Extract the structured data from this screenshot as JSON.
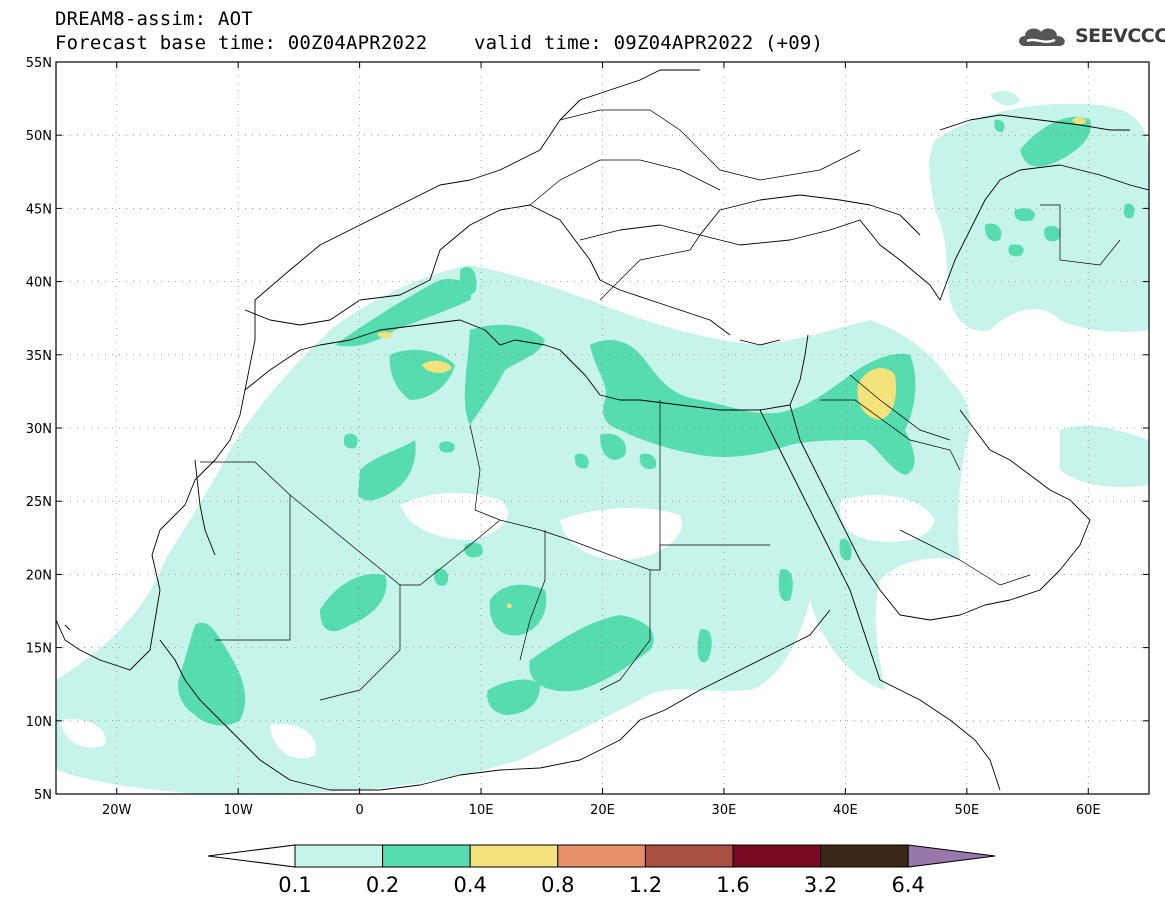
{
  "header": {
    "title_line1": "DREAM8-assim: AOT",
    "title_line2": "Forecast base time: 00Z04APR2022    valid time: 09Z04APR2022 (+09)"
  },
  "logo": {
    "text": "SEEVCCC",
    "icon": "cloud-icon",
    "color": "#555555"
  },
  "map": {
    "lon_range": [
      -25,
      65
    ],
    "lat_range": [
      5,
      55
    ],
    "lat_ticks": [
      {
        "value": 55,
        "label": "55N"
      },
      {
        "value": 50,
        "label": "50N"
      },
      {
        "value": 45,
        "label": "45N"
      },
      {
        "value": 40,
        "label": "40N"
      },
      {
        "value": 35,
        "label": "35N"
      },
      {
        "value": 30,
        "label": "30N"
      },
      {
        "value": 25,
        "label": "25N"
      },
      {
        "value": 20,
        "label": "20N"
      },
      {
        "value": 15,
        "label": "15N"
      },
      {
        "value": 10,
        "label": "10N"
      },
      {
        "value": 5,
        "label": "5N"
      }
    ],
    "lon_ticks": [
      {
        "value": -20,
        "label": "20W"
      },
      {
        "value": -10,
        "label": "10W"
      },
      {
        "value": 0,
        "label": "0"
      },
      {
        "value": 10,
        "label": "10E"
      },
      {
        "value": 20,
        "label": "20E"
      },
      {
        "value": 30,
        "label": "30E"
      },
      {
        "value": 40,
        "label": "40E"
      },
      {
        "value": 50,
        "label": "50E"
      },
      {
        "value": 60,
        "label": "60E"
      }
    ],
    "grid": "dotted"
  },
  "colorbar": {
    "labels": [
      "0.1",
      "0.2",
      "0.4",
      "0.8",
      "1.2",
      "1.6",
      "3.2",
      "6.4"
    ],
    "colors": [
      "#c6f3ea",
      "#57dcb0",
      "#f4e27a",
      "#e9906a",
      "#a95042",
      "#7a0a24",
      "#3b2718",
      "#9878aa"
    ],
    "under_color": "#ffffff",
    "over_color": "#9878aa"
  },
  "aot_levels": {
    "level_0_1": "#c6f3ea",
    "level_0_2": "#57dcb0",
    "level_0_4": "#f4e27a"
  }
}
